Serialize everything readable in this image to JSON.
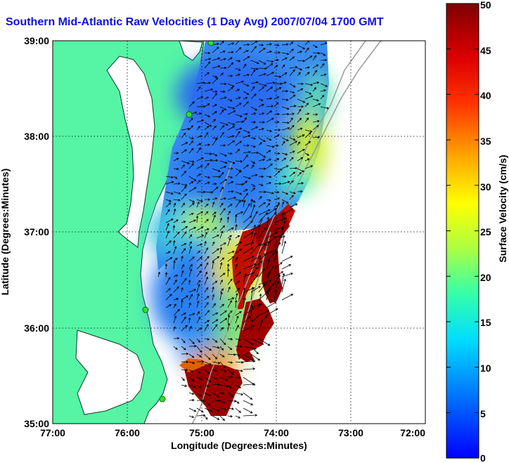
{
  "title": "Southern Mid-Atlantic Raw Velocities (1 Day Avg) 2007/07/04 1700 GMT",
  "chart_data": {
    "type": "heatmap",
    "xlabel": "Longitude (Degrees:Minutes)",
    "ylabel": "Latitude (Degrees:Minutes)",
    "xlim": [
      -77,
      -72
    ],
    "ylim": [
      35,
      39
    ],
    "x_ticks": [
      "77:00",
      "76:00",
      "75:00",
      "74:00",
      "73:00",
      "72:00"
    ],
    "y_ticks": [
      "35:00",
      "36:00",
      "37:00",
      "38:00",
      "39:00"
    ],
    "grid": true,
    "colorbar": {
      "label": "Surface Velocity (cm/s)",
      "range": [
        0,
        50
      ],
      "ticks": [
        "0",
        "5",
        "10",
        "15",
        "20",
        "25",
        "30",
        "35",
        "40",
        "45",
        "50"
      ]
    }
  },
  "colors": {
    "land": "#55f5a5",
    "title": "#1010e0",
    "coast": "#0a3a24",
    "arrow": "#000000",
    "site": "#2ee02e"
  }
}
